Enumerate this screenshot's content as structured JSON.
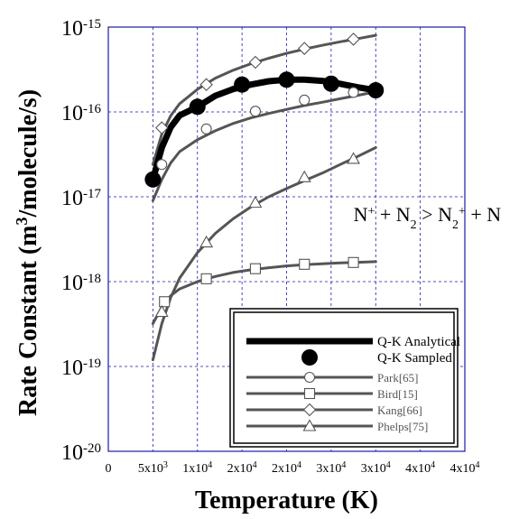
{
  "chart_data": {
    "type": "line",
    "title": "",
    "xlabel": "Temperature (K)",
    "ylabel_parts": {
      "prefix": "Rate Constant (m",
      "sup": "3",
      "suffix": "/molecule/s)"
    },
    "xlim": [
      0,
      40000
    ],
    "ylim_log10": [
      -20,
      -15
    ],
    "y_scale": "log",
    "grid": true,
    "x_ticks": [
      {
        "value": 0,
        "base": "0",
        "exp": ""
      },
      {
        "value": 5000,
        "base": "5x10",
        "exp": "3"
      },
      {
        "value": 10000,
        "base": "1x10",
        "exp": "4"
      },
      {
        "value": 15000,
        "base": "2x10",
        "exp": "4"
      },
      {
        "value": 20000,
        "base": "2x10",
        "exp": "4"
      },
      {
        "value": 25000,
        "base": "3x10",
        "exp": "4"
      },
      {
        "value": 30000,
        "base": "3x10",
        "exp": "4"
      },
      {
        "value": 35000,
        "base": "4x10",
        "exp": "4"
      },
      {
        "value": 40000,
        "base": "4x10",
        "exp": "4"
      }
    ],
    "y_ticks": [
      {
        "value": 1e-15,
        "base": "10",
        "exp": "-15"
      },
      {
        "value": 1e-16,
        "base": "10",
        "exp": "-16"
      },
      {
        "value": 1e-17,
        "base": "10",
        "exp": "-17"
      },
      {
        "value": 1e-18,
        "base": "10",
        "exp": "-18"
      },
      {
        "value": 1e-19,
        "base": "10",
        "exp": "-19"
      },
      {
        "value": 1e-20,
        "base": "10",
        "exp": "-20"
      }
    ],
    "annotation": {
      "x": 27500,
      "y": 6.3e-18,
      "parts": [
        {
          "t": "N",
          "k": "n"
        },
        {
          "t": "+",
          "k": "sup"
        },
        {
          "t": " + N",
          "k": "n"
        },
        {
          "t": "2",
          "k": "sub"
        },
        {
          "t": " > N",
          "k": "n"
        },
        {
          "t": "2",
          "k": "sub"
        },
        {
          "t": "+",
          "k": "sup"
        },
        {
          "t": " + N",
          "k": "n"
        }
      ]
    },
    "legend_position": "bottom-right",
    "series": [
      {
        "name": "Q-K Analytical",
        "style": "thick",
        "color": "#000000",
        "marker": "none",
        "x": [
          5000,
          6000,
          7000,
          8000,
          10000,
          12000,
          14000,
          16000,
          18000,
          20000,
          22000,
          24000,
          26000,
          28000,
          30000
        ],
        "y": [
          1.6e-17,
          3.8e-17,
          6.6e-17,
          9.1e-17,
          1.15e-16,
          1.55e-16,
          1.86e-16,
          2.1e-16,
          2.3e-16,
          2.4e-16,
          2.4e-16,
          2.32e-16,
          2.15e-16,
          1.95e-16,
          1.8e-16
        ]
      },
      {
        "name": "Q-K Sampled",
        "style": "none",
        "color": "#000000",
        "marker": "big-dot",
        "x": [
          5000,
          10000,
          15000,
          20000,
          25000,
          30000
        ],
        "y": [
          1.6e-17,
          1.15e-16,
          2.1e-16,
          2.4e-16,
          2.15e-16,
          1.8e-16
        ]
      },
      {
        "name": "Park[65]",
        "style": "line",
        "color": "#555555",
        "marker": "circle",
        "x": [
          5000,
          6000,
          7000,
          8000,
          10000,
          12000,
          14000,
          16000,
          18000,
          20000,
          22000,
          24000,
          26000,
          28000,
          30000
        ],
        "y": [
          9e-18,
          1.6e-17,
          2.5e-17,
          3.4e-17,
          4.7e-17,
          6e-17,
          7.3e-17,
          8.5e-17,
          9.6e-17,
          1.07e-16,
          1.19e-16,
          1.3e-16,
          1.43e-16,
          1.57e-16,
          1.73e-16
        ],
        "marker_x": [
          6000,
          11000,
          16500,
          22000,
          27500
        ],
        "marker_y": [
          2.4e-17,
          6.3e-17,
          1.02e-16,
          1.38e-16,
          1.7e-16
        ]
      },
      {
        "name": "Bird[15]",
        "style": "line",
        "color": "#555555",
        "marker": "square",
        "x": [
          5000,
          6000,
          7000,
          8000,
          10000,
          12000,
          14000,
          16000,
          18000,
          20000,
          22000,
          24000,
          26000,
          28000,
          30000
        ],
        "y": [
          3.2e-19,
          5e-19,
          6.8e-19,
          8.2e-19,
          1e-18,
          1.15e-18,
          1.28e-18,
          1.38e-18,
          1.46e-18,
          1.53e-18,
          1.58e-18,
          1.62e-18,
          1.66e-18,
          1.69e-18,
          1.72e-18
        ],
        "marker_x": [
          6300,
          11000,
          16500,
          22000,
          27500
        ],
        "marker_y": [
          5.8e-19,
          1.08e-18,
          1.42e-18,
          1.6e-18,
          1.68e-18
        ]
      },
      {
        "name": "Kang[66]",
        "style": "line",
        "color": "#555555",
        "marker": "diamond",
        "x": [
          5000,
          6000,
          7000,
          8000,
          10000,
          12000,
          14000,
          16000,
          18000,
          20000,
          22000,
          24000,
          26000,
          28000,
          30000
        ],
        "y": [
          2.4e-17,
          5.5e-17,
          9e-17,
          1.25e-16,
          1.85e-16,
          2.5e-16,
          3.1e-16,
          3.7e-16,
          4.3e-16,
          4.9e-16,
          5.5e-16,
          6.1e-16,
          6.7e-16,
          7.3e-16,
          8e-16
        ],
        "marker_x": [
          6000,
          11000,
          16500,
          22000,
          27500
        ],
        "marker_y": [
          6.5e-17,
          2.1e-16,
          3.85e-16,
          5.6e-16,
          7.2e-16
        ]
      },
      {
        "name": "Phelps[75]",
        "style": "line",
        "color": "#555555",
        "marker": "triangle",
        "x": [
          5000,
          6000,
          7000,
          8000,
          10000,
          12000,
          14000,
          16000,
          18000,
          20000,
          22000,
          24000,
          26000,
          28000,
          30000
        ],
        "y": [
          1.2e-19,
          3.2e-19,
          6.5e-19,
          1.1e-18,
          2.2e-18,
          3.7e-18,
          5.5e-18,
          7.6e-18,
          1e-17,
          1.25e-17,
          1.55e-17,
          1.9e-17,
          2.4e-17,
          3e-17,
          3.8e-17
        ],
        "marker_x": [
          6000,
          11000,
          16500,
          22000,
          27500
        ],
        "marker_y": [
          4.4e-19,
          2.9e-18,
          8.5e-18,
          1.7e-17,
          2.8e-17
        ]
      }
    ]
  }
}
